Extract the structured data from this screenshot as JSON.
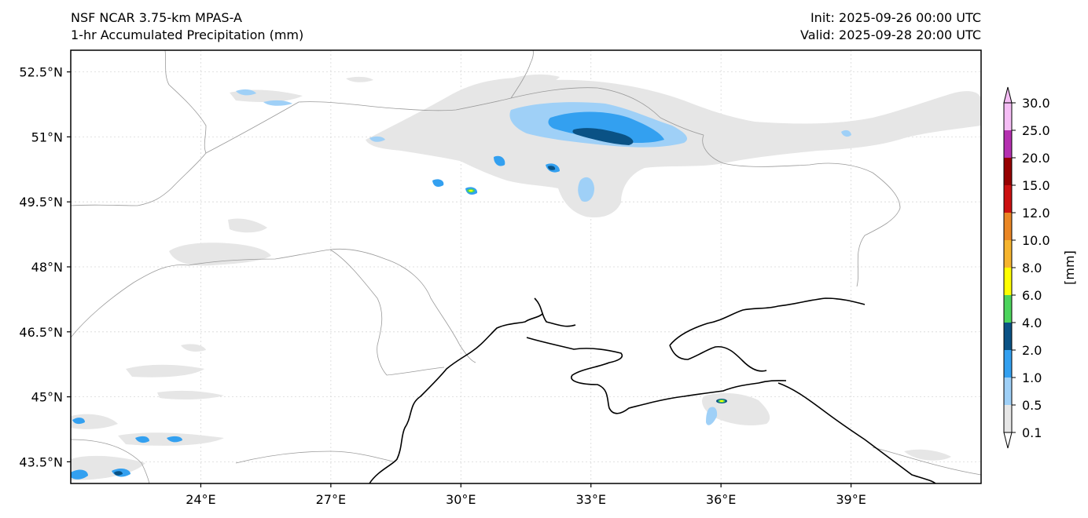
{
  "header": {
    "model_line": "NSF NCAR 3.75-km MPAS-A",
    "field_line": "1-hr Accumulated Precipitation (mm)",
    "init_line": "Init: 2025-09-26 00:00 UTC",
    "valid_line": "Valid: 2025-09-28 20:00 UTC"
  },
  "map": {
    "lon_range": [
      21,
      42
    ],
    "lat_range": [
      43,
      53
    ],
    "lat_ticks": [
      {
        "value": 52.5,
        "label": "52.5°N"
      },
      {
        "value": 51,
        "label": "51°N"
      },
      {
        "value": 49.5,
        "label": "49.5°N"
      },
      {
        "value": 48,
        "label": "48°N"
      },
      {
        "value": 46.5,
        "label": "46.5°N"
      },
      {
        "value": 45,
        "label": "45°N"
      },
      {
        "value": 43.5,
        "label": "43.5°N"
      }
    ],
    "lon_ticks": [
      {
        "value": 24,
        "label": "24°E"
      },
      {
        "value": 27,
        "label": "27°E"
      },
      {
        "value": 30,
        "label": "30°E"
      },
      {
        "value": 33,
        "label": "33°E"
      },
      {
        "value": 36,
        "label": "36°E"
      },
      {
        "value": 39,
        "label": "39°E"
      }
    ],
    "gridlines": true
  },
  "colorbar": {
    "unit_label": "[mm]",
    "levels": [
      "0.1",
      "0.5",
      "1.0",
      "2.0",
      "4.0",
      "6.0",
      "8.0",
      "10.0",
      "12.0",
      "15.0",
      "20.0",
      "25.0",
      "30.0"
    ],
    "colors": [
      "#e6e6e6",
      "#9fd0f7",
      "#33a0f0",
      "#0a5285",
      "#4cd45c",
      "#ffff00",
      "#f6b42e",
      "#ea8624",
      "#cc1010",
      "#960000",
      "#b530b0",
      "#f5bdf5"
    ],
    "extend": "both"
  },
  "colors": {
    "coast": "#000000",
    "border": "#9a9a9a",
    "grid": "#d8d8d8"
  }
}
